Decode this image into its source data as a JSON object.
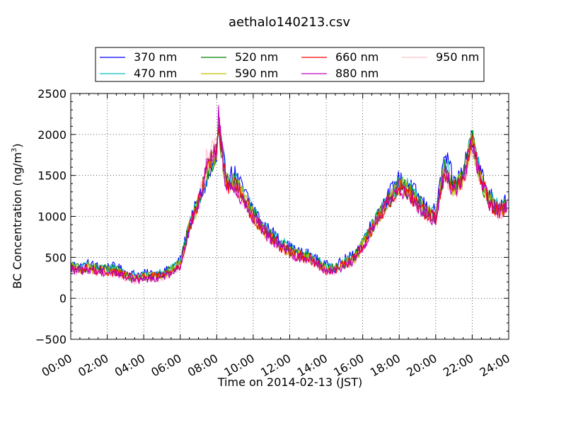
{
  "chart_data": {
    "type": "line",
    "title": "aethalo140213.csv",
    "xlabel": "Time on 2014-02-13 (JST)",
    "ylabel": "BC Concentration (ng/m",
    "ylabel_sup": "3",
    "ylabel_tail": ")",
    "xlim": [
      0,
      24
    ],
    "ylim": [
      -500,
      2500
    ],
    "x_ticks": [
      0,
      2,
      4,
      6,
      8,
      10,
      12,
      14,
      16,
      18,
      20,
      22,
      24
    ],
    "x_tick_labels": [
      "00:00",
      "02:00",
      "04:00",
      "06:00",
      "08:00",
      "10:00",
      "12:00",
      "14:00",
      "16:00",
      "18:00",
      "20:00",
      "22:00",
      "24:00"
    ],
    "y_ticks": [
      -500,
      0,
      500,
      1000,
      1500,
      2000,
      2500
    ],
    "y_tick_labels": [
      "−500",
      "0",
      "500",
      "1000",
      "1500",
      "2000",
      "2500"
    ],
    "grid": true,
    "legend_position": "top",
    "x_sample_hours": [
      0,
      0.5,
      1,
      1.5,
      2,
      2.5,
      3,
      3.5,
      4,
      4.5,
      5,
      5.5,
      6,
      6.5,
      7,
      7.5,
      8,
      8.1,
      8.5,
      9,
      9.5,
      10,
      10.5,
      11,
      11.5,
      12,
      12.5,
      13,
      13.5,
      14,
      14.5,
      15,
      15.5,
      16,
      16.5,
      17,
      17.5,
      18,
      18.5,
      19,
      19.5,
      20,
      20.3,
      20.5,
      21,
      21.5,
      22,
      22.5,
      23,
      23.5,
      23.9
    ],
    "series": [
      {
        "name": "370 nm",
        "color": "#0000ff",
        "values": [
          420,
          380,
          420,
          380,
          380,
          380,
          320,
          290,
          300,
          300,
          300,
          370,
          460,
          900,
          1200,
          1450,
          1700,
          2050,
          1500,
          1500,
          1300,
          1100,
          900,
          800,
          700,
          620,
          560,
          540,
          470,
          400,
          380,
          470,
          520,
          700,
          900,
          1100,
          1280,
          1450,
          1380,
          1250,
          1100,
          1050,
          1450,
          1750,
          1400,
          1550,
          2000,
          1500,
          1250,
          1150,
          1200
        ]
      },
      {
        "name": "470 nm",
        "color": "#00bfbf",
        "values": [
          400,
          370,
          400,
          360,
          360,
          350,
          300,
          270,
          280,
          290,
          300,
          360,
          440,
          880,
          1200,
          1500,
          1750,
          2100,
          1450,
          1450,
          1250,
          1050,
          880,
          780,
          680,
          600,
          550,
          520,
          450,
          380,
          370,
          450,
          500,
          680,
          880,
          1080,
          1250,
          1400,
          1350,
          1200,
          1080,
          1000,
          1400,
          1650,
          1380,
          1500,
          1950,
          1450,
          1200,
          1100,
          1150
        ]
      },
      {
        "name": "520 nm",
        "color": "#008000",
        "values": [
          390,
          360,
          390,
          350,
          350,
          340,
          290,
          260,
          270,
          280,
          290,
          350,
          430,
          870,
          1180,
          1550,
          1780,
          2120,
          1420,
          1430,
          1230,
          1030,
          860,
          760,
          660,
          580,
          540,
          510,
          440,
          370,
          360,
          440,
          490,
          660,
          860,
          1060,
          1230,
          1380,
          1320,
          1180,
          1060,
          990,
          1380,
          1600,
          1350,
          1480,
          1930,
          1430,
          1180,
          1080,
          1130
        ]
      },
      {
        "name": "590 nm",
        "color": "#bfbf00",
        "values": [
          380,
          350,
          380,
          340,
          340,
          330,
          280,
          250,
          260,
          270,
          280,
          340,
          420,
          860,
          1170,
          1600,
          1790,
          2140,
          1400,
          1410,
          1210,
          1010,
          850,
          750,
          650,
          570,
          530,
          500,
          430,
          360,
          350,
          430,
          480,
          650,
          850,
          1050,
          1220,
          1370,
          1310,
          1170,
          1050,
          980,
          1370,
          1580,
          1340,
          1470,
          1920,
          1420,
          1170,
          1070,
          1120
        ]
      },
      {
        "name": "660 nm",
        "color": "#ff0000",
        "values": [
          370,
          340,
          370,
          330,
          330,
          320,
          270,
          240,
          250,
          260,
          270,
          330,
          410,
          860,
          1160,
          1650,
          1800,
          2160,
          1390,
          1400,
          1200,
          1000,
          840,
          740,
          640,
          560,
          520,
          490,
          420,
          350,
          340,
          420,
          470,
          640,
          840,
          1040,
          1210,
          1360,
          1300,
          1160,
          1040,
          970,
          1360,
          1560,
          1330,
          1460,
          1910,
          1410,
          1160,
          1060,
          1110
        ]
      },
      {
        "name": "880 nm",
        "color": "#bf00bf",
        "values": [
          360,
          330,
          360,
          320,
          320,
          310,
          260,
          230,
          240,
          250,
          260,
          320,
          400,
          860,
          1150,
          1700,
          1820,
          2200,
          1380,
          1390,
          1190,
          990,
          830,
          730,
          630,
          550,
          510,
          480,
          410,
          340,
          330,
          410,
          460,
          630,
          830,
          1030,
          1200,
          1350,
          1290,
          1150,
          1030,
          960,
          1350,
          1540,
          1320,
          1450,
          1900,
          1400,
          1150,
          1050,
          1100
        ]
      },
      {
        "name": "950 nm",
        "color": "#ffc0cb",
        "values": [
          350,
          320,
          350,
          310,
          310,
          300,
          250,
          220,
          230,
          240,
          250,
          310,
          390,
          850,
          1140,
          1750,
          1850,
          2150,
          1370,
          1380,
          1180,
          980,
          820,
          720,
          620,
          540,
          500,
          470,
          400,
          330,
          320,
          400,
          450,
          620,
          820,
          1020,
          1190,
          1340,
          1280,
          1140,
          1020,
          950,
          1340,
          1520,
          1310,
          1440,
          1890,
          1390,
          1140,
          1040,
          1090
        ]
      }
    ]
  }
}
